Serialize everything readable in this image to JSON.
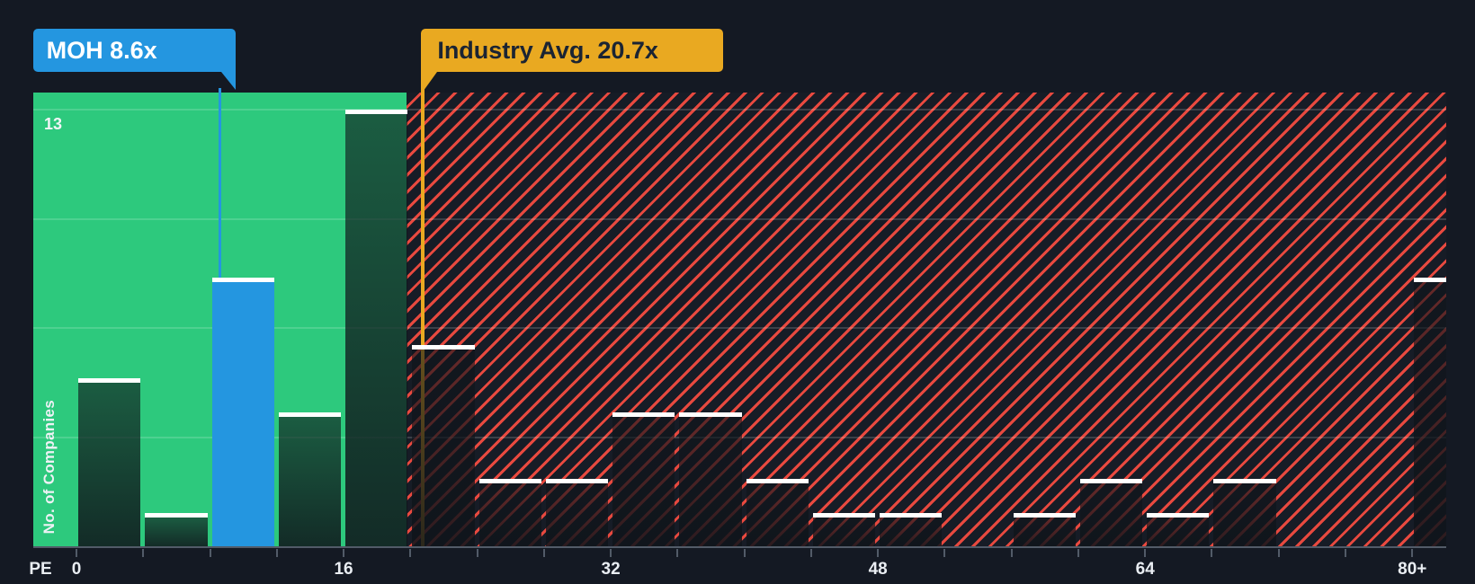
{
  "chart_data": {
    "type": "bar",
    "subtype": "histogram",
    "xlabel": "PE",
    "ylabel": "No. of Companies",
    "bin_width": 4,
    "categories": [
      "0-4",
      "4-8",
      "8-12",
      "12-16",
      "16-20",
      "20-24",
      "24-28",
      "28-32",
      "32-36",
      "36-40",
      "40-44",
      "44-48",
      "48-52",
      "52-56",
      "56-60",
      "60-64",
      "64-68",
      "68-72",
      "72-76",
      "76-80",
      "80+"
    ],
    "values": [
      5,
      1,
      8,
      4,
      13,
      6,
      2,
      2,
      4,
      4,
      2,
      1,
      1,
      0,
      1,
      2,
      1,
      2,
      0,
      0,
      8
    ],
    "x_tick_values": [
      0,
      16,
      32,
      48,
      64,
      80
    ],
    "x_tick_labels": [
      "0",
      "16",
      "32",
      "48",
      "64",
      "80+"
    ],
    "x_minor_tick_step": 4,
    "x_max": 82,
    "ylim": [
      0,
      13.5
    ],
    "grid_values": [
      3.25,
      6.5,
      9.75,
      13
    ],
    "y_grid_label": "13",
    "grid": "on",
    "legend_position": "none",
    "highlight": {
      "label": "MOH 8.6x",
      "company": "MOH",
      "value": 8.6,
      "bin_index": 2,
      "color": "#2496e0"
    },
    "industry_avg": {
      "label": "Industry Avg. 20.7x",
      "value": 20.7,
      "color": "#e9a921"
    },
    "regions": {
      "below_avg": {
        "style": "solid",
        "color": "#2dc97d",
        "end_value": 20
      },
      "above_avg": {
        "style": "diagonal-hatch",
        "hatch_color": "#e8493f",
        "background": "#171c26"
      }
    }
  },
  "colors": {
    "page_background": "#141923",
    "bar_top_stripe": "#ffffff",
    "bar_overlay": "#0f141a",
    "axis": "#525b68",
    "tick_label": "#e9edf2",
    "gridline": "rgba(255,255,255,0.16)",
    "moh_text": "#ffffff",
    "industry_text": "#1b2433"
  }
}
